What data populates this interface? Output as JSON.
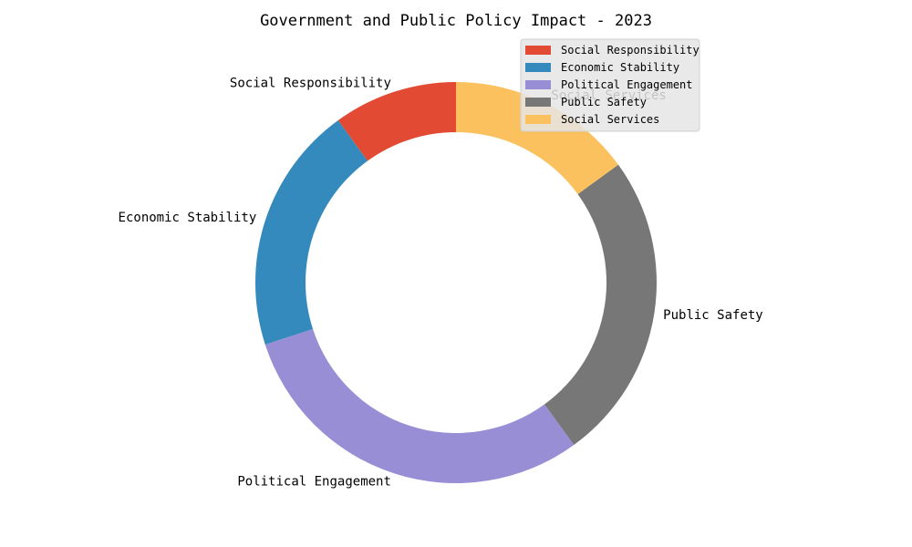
{
  "chart_data": {
    "type": "pie",
    "donut": true,
    "title": "Government and Public Policy Impact - 2023",
    "start_angle_deg": 90,
    "direction": "counterclockwise",
    "slices": [
      {
        "label": "Social Responsibility",
        "value": 10,
        "color": "#E24A33"
      },
      {
        "label": "Economic Stability",
        "value": 20,
        "color": "#348ABD"
      },
      {
        "label": "Political Engagement",
        "value": 30,
        "color": "#988ED5"
      },
      {
        "label": "Public Safety",
        "value": 25,
        "color": "#777777"
      },
      {
        "label": "Social Services",
        "value": 15,
        "color": "#FBC15E"
      }
    ],
    "legend": {
      "placement": "top-right",
      "background": "#E5E5E5",
      "items": [
        "Social Responsibility",
        "Economic Stability",
        "Political Engagement",
        "Public Safety",
        "Social Services"
      ]
    }
  }
}
